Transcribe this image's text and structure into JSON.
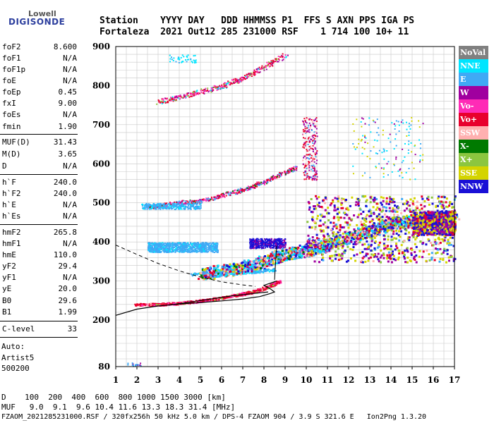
{
  "logo": {
    "line1": "Lowell",
    "line2": "DIGISONDE"
  },
  "header": {
    "row1": "Station    YYYY DAY   DDD HHMMSS P1  FFS S AXN PPS IGA PS",
    "row2": "Fortaleza  2021 Out12 285 231000 RSF    1 714 100 10+ 11"
  },
  "params": [
    {
      "name": "foF2",
      "value": "8.600"
    },
    {
      "name": "foF1",
      "value": "N/A"
    },
    {
      "name": "foF1p",
      "value": "N/A"
    },
    {
      "name": "foE",
      "value": "N/A"
    },
    {
      "name": "foEp",
      "value": "0.45"
    },
    {
      "name": "fxI",
      "value": "9.00"
    },
    {
      "name": "foEs",
      "value": "N/A"
    },
    {
      "name": "fmin",
      "value": "1.90"
    },
    {
      "name": "MUF(D)",
      "value": "31.43"
    },
    {
      "name": "M(D)",
      "value": "3.65"
    },
    {
      "name": "D",
      "value": "N/A"
    },
    {
      "name": "h`F",
      "value": "240.0"
    },
    {
      "name": "h`F2",
      "value": "240.0"
    },
    {
      "name": "h`E",
      "value": "N/A"
    },
    {
      "name": "h`Es",
      "value": "N/A"
    },
    {
      "name": "hmF2",
      "value": "265.8"
    },
    {
      "name": "hmF1",
      "value": "N/A"
    },
    {
      "name": "hmE",
      "value": "110.0"
    },
    {
      "name": "yF2",
      "value": "29.4"
    },
    {
      "name": "yF1",
      "value": "N/A"
    },
    {
      "name": "yE",
      "value": "20.0"
    },
    {
      "name": "B0",
      "value": "29.6"
    },
    {
      "name": "B1",
      "value": "1.99"
    },
    {
      "name": "C-level",
      "value": "33"
    }
  ],
  "auto": {
    "line1": "Auto:",
    "line2": "Artist5",
    "line3": "500200"
  },
  "legend": [
    {
      "label": "NoVal",
      "bg": "#808080",
      "fg": "#ffffff"
    },
    {
      "label": "NNE",
      "bg": "#00e5ff",
      "fg": "#ffffff"
    },
    {
      "label": "E",
      "bg": "#3fa9f5",
      "fg": "#ffffff"
    },
    {
      "label": "W",
      "bg": "#a0009f",
      "fg": "#ffffff"
    },
    {
      "label": "Vo-",
      "bg": "#ff2bb6",
      "fg": "#ffffff"
    },
    {
      "label": "Vo+",
      "bg": "#e8002d",
      "fg": "#ffffff"
    },
    {
      "label": "SSW",
      "bg": "#ffb0b0",
      "fg": "#ffffff"
    },
    {
      "label": "X-",
      "bg": "#007a00",
      "fg": "#ffffff"
    },
    {
      "label": "X+",
      "bg": "#8cc63f",
      "fg": "#ffffff"
    },
    {
      "label": "SSE",
      "bg": "#d4d400",
      "fg": "#ffffff"
    },
    {
      "label": "NNW",
      "bg": "#1a10d6",
      "fg": "#ffffff"
    }
  ],
  "footer": {
    "d_row": "D    100  200  400  600  800 1000 1500 3000 [km]",
    "muf_row": "MUF   9.0  9.1  9.6 10.4 11.6 13.3 18.3 31.4 [MHz]",
    "file_row": "FZAOM_2021285231000.RSF / 320fx256h 50 kHz 5.0 km / DPS-4 FZAOM 904 / 3.9 S 321.6 E   Ion2Png 1.3.20"
  },
  "chart_data": {
    "type": "scatter",
    "title": "",
    "xlabel": "",
    "ylabel": "",
    "xlim": [
      1,
      17
    ],
    "ylim": [
      80,
      900
    ],
    "x_ticks": [
      1,
      2,
      3,
      4,
      5,
      6,
      7,
      8,
      9,
      10,
      11,
      12,
      13,
      14,
      15,
      16,
      17
    ],
    "y_ticks": [
      80,
      200,
      300,
      400,
      500,
      600,
      700,
      800,
      900
    ],
    "y_tick_labels": [
      "80",
      "200",
      "300",
      "400",
      "500",
      "600",
      "700",
      "800",
      "900"
    ],
    "grid": true,
    "trace_main": [
      [
        1.9,
        240
      ],
      [
        3,
        241
      ],
      [
        4,
        244
      ],
      [
        5,
        250
      ],
      [
        6,
        258
      ],
      [
        7,
        268
      ],
      [
        7.6,
        275
      ],
      [
        8.2,
        287
      ],
      [
        8.7,
        300
      ]
    ],
    "trace_second": [
      [
        5,
        320
      ],
      [
        6,
        328
      ],
      [
        7,
        337
      ],
      [
        8,
        352
      ],
      [
        9,
        370
      ],
      [
        10,
        380
      ],
      [
        11,
        393
      ],
      [
        12,
        415
      ],
      [
        13,
        430
      ],
      [
        14,
        450
      ],
      [
        15,
        455
      ],
      [
        16,
        460
      ],
      [
        17,
        470
      ]
    ],
    "trace_echo2": [
      [
        2.5,
        490
      ],
      [
        4,
        502
      ],
      [
        5,
        505
      ],
      [
        6,
        520
      ],
      [
        7,
        535
      ],
      [
        8,
        555
      ],
      [
        9,
        580
      ],
      [
        9.5,
        590
      ]
    ],
    "trace_echo3": [
      [
        3,
        760
      ],
      [
        4,
        772
      ],
      [
        5,
        785
      ],
      [
        6,
        800
      ],
      [
        7,
        820
      ],
      [
        8,
        848
      ],
      [
        9,
        880
      ]
    ],
    "cluster_band_400": {
      "x": [
        2.5,
        5.8
      ],
      "y": [
        375,
        400
      ]
    },
    "cluster_band_400_b": {
      "x": [
        7.3,
        9.0
      ],
      "y": [
        385,
        410
      ]
    },
    "spread_f_region": {
      "x": [
        10,
        17
      ],
      "y": [
        350,
        520
      ]
    },
    "profile_curve": [
      [
        1,
        212
      ],
      [
        2,
        228
      ],
      [
        3,
        236
      ],
      [
        4,
        241
      ],
      [
        5,
        245
      ],
      [
        6,
        249
      ],
      [
        7,
        254
      ],
      [
        7.8,
        260
      ],
      [
        8.3,
        268
      ],
      [
        8.5,
        272
      ],
      [
        8.3,
        280
      ],
      [
        8,
        289
      ],
      [
        8.6,
        300
      ]
    ],
    "profile_curve_lower": [
      [
        3.5,
        238
      ],
      [
        5,
        250
      ],
      [
        6.5,
        262
      ],
      [
        7.5,
        268
      ],
      [
        8.2,
        272
      ]
    ],
    "dashed_curve": [
      [
        1,
        392
      ],
      [
        2,
        368
      ],
      [
        3,
        345
      ],
      [
        4,
        326
      ],
      [
        5,
        310
      ],
      [
        6,
        298
      ],
      [
        7,
        290
      ],
      [
        7.6,
        286
      ]
    ],
    "spike": [
      [
        8.5,
        303
      ],
      [
        8.6,
        390
      ]
    ]
  }
}
